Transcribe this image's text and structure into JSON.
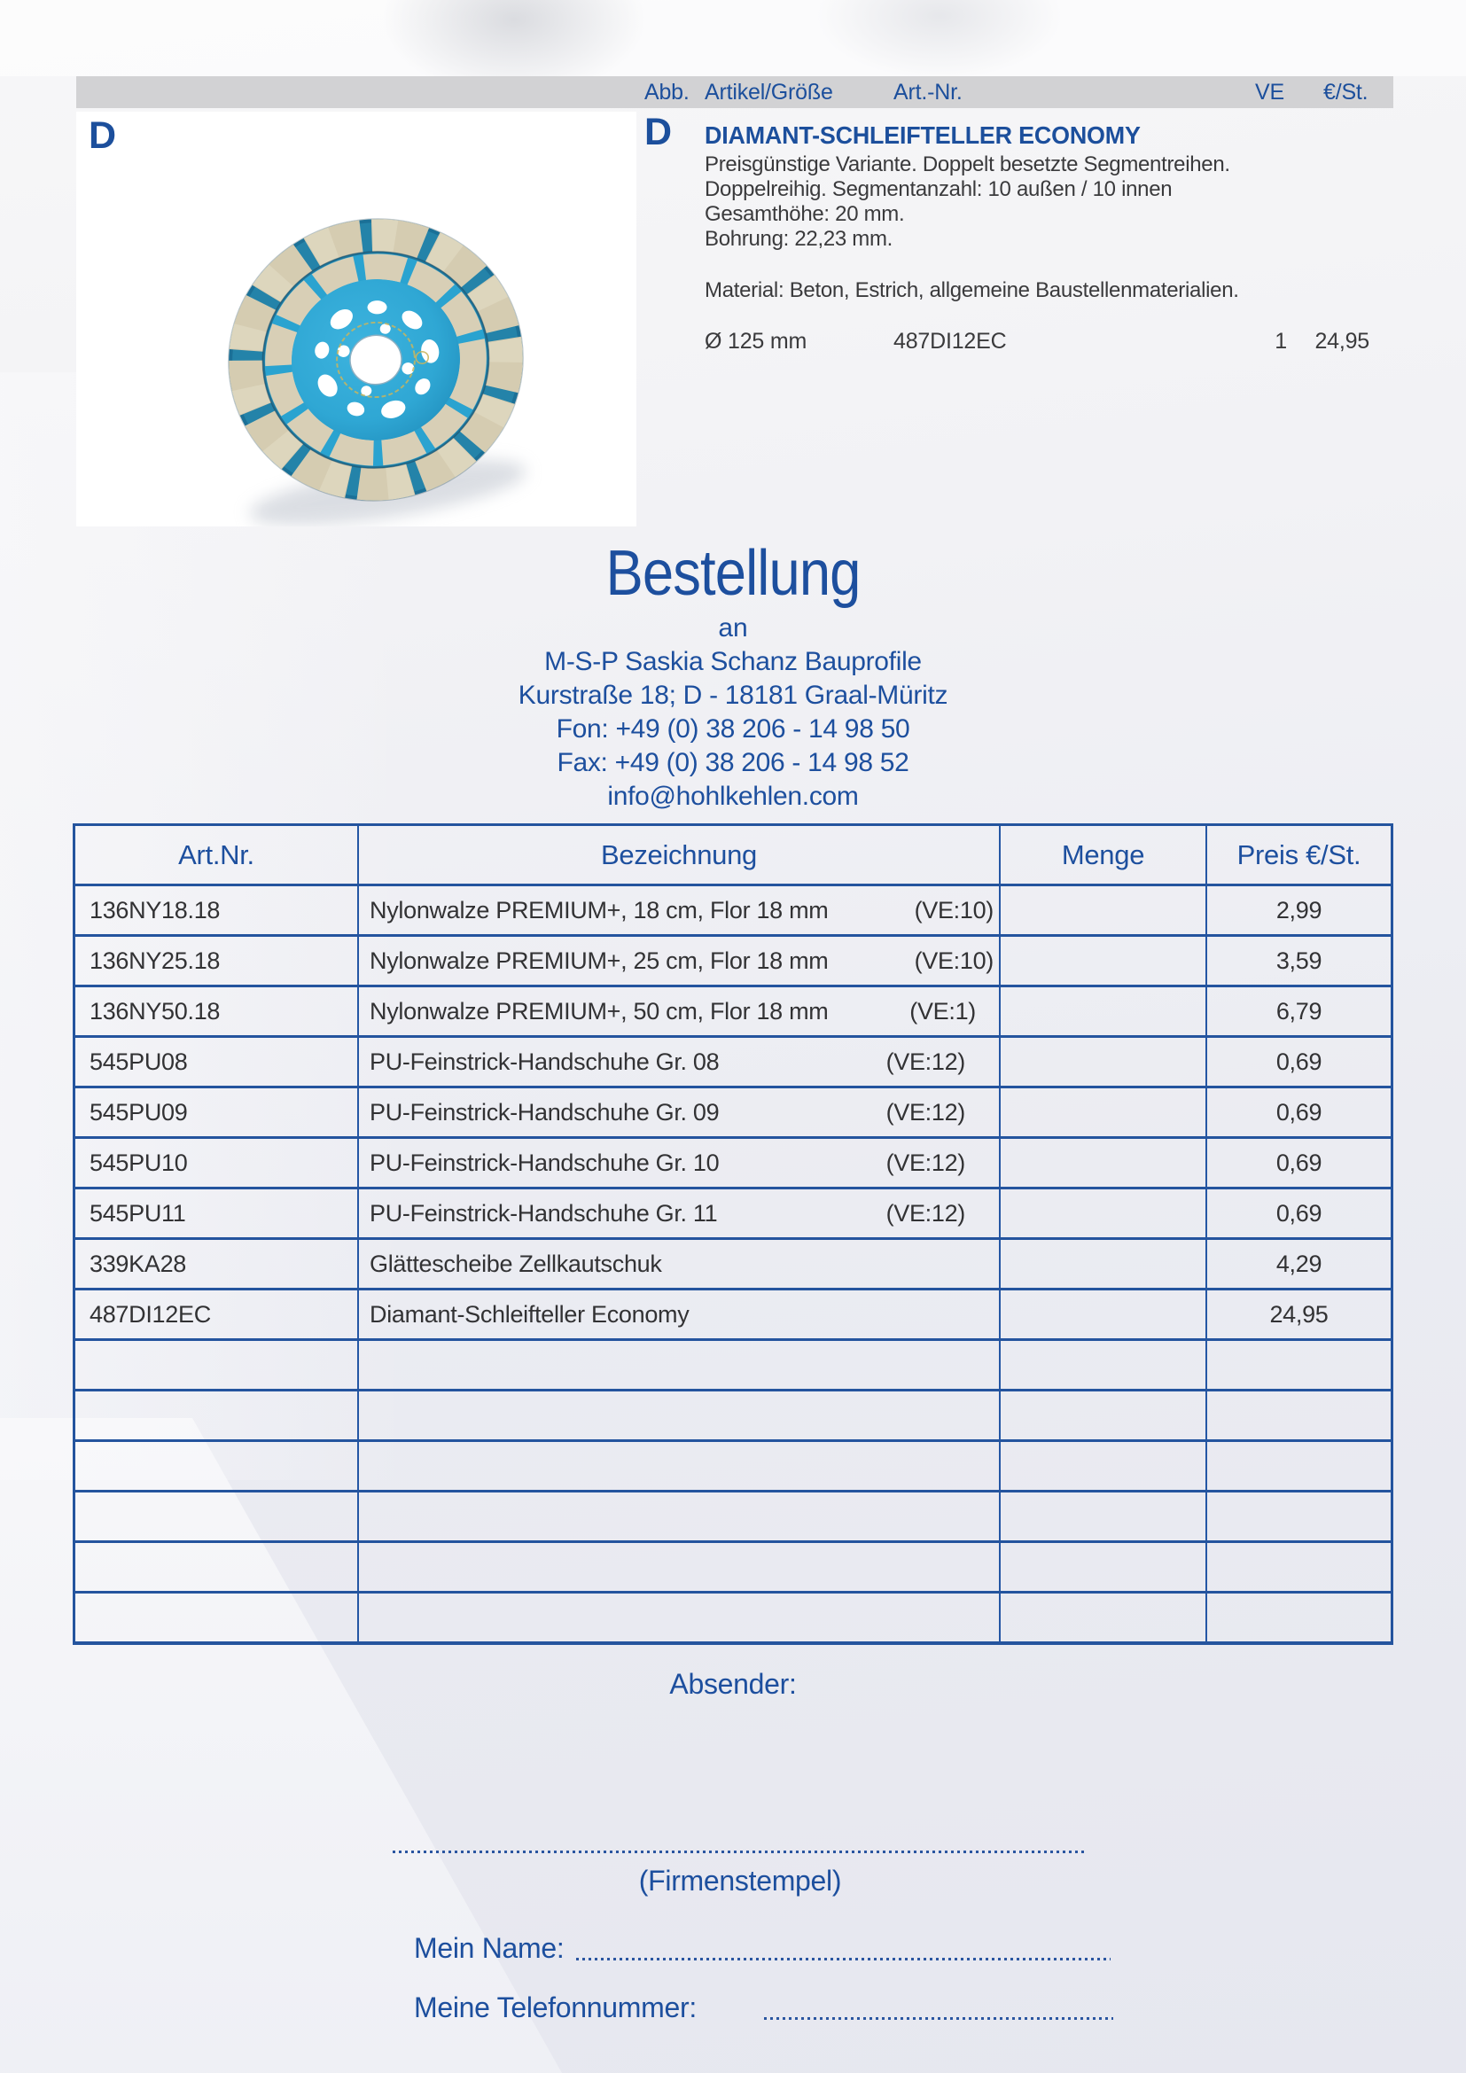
{
  "catalog_header": {
    "abb": "Abb.",
    "artikel": "Artikel/Größe",
    "artnr": "Art.-Nr.",
    "ve": "VE",
    "price": "€/St."
  },
  "product": {
    "section_letter": "D",
    "image_letter": "D",
    "title": "DIAMANT-SCHLEIFTELLER ECONOMY",
    "description_lines": [
      "Preisgünstige Variante. Doppelt besetzte Segmentreihen.",
      "Doppelreihig. Segmentanzahl: 10 außen / 10 innen",
      "Gesamthöhe: 20 mm.",
      "Bohrung: 22,23 mm."
    ],
    "material_line": "Material: Beton, Estrich, allgemeine Baustellenmaterialien.",
    "size": "Ø 125 mm",
    "art_nr": "487DI12EC",
    "ve": "1",
    "price": "24,95",
    "image_alt": "diamond-cup-grinding-wheel"
  },
  "order": {
    "title": "Bestellung",
    "an": "an",
    "recipient": "M-S-P Saskia Schanz Bauprofile",
    "street": "Kurstraße 18; D - 18181 Graal-Müritz",
    "fon": "Fon: +49 (0) 38 206 - 14 98 50",
    "fax": "Fax: +49 (0) 38 206 - 14 98 52",
    "email": "info@hohlkehlen.com"
  },
  "table": {
    "headers": [
      "Art.Nr.",
      "Bezeichnung",
      "Menge",
      "Preis €/St."
    ],
    "rows": [
      {
        "art": "136NY18.18",
        "name": "Nylonwalze PREMIUM+, 18 cm, Flor 18 mm",
        "ve": "(VE:10)",
        "menge": "",
        "price": "2,99"
      },
      {
        "art": "136NY25.18",
        "name": "Nylonwalze PREMIUM+, 25 cm, Flor 18 mm",
        "ve": "(VE:10)",
        "menge": "",
        "price": "3,59"
      },
      {
        "art": "136NY50.18",
        "name": "Nylonwalze PREMIUM+, 50 cm, Flor 18 mm",
        "ve": "(VE:1)",
        "menge": "",
        "price": "6,79"
      },
      {
        "art": "545PU08",
        "name": "PU-Feinstrick-Handschuhe Gr. 08",
        "ve": "(VE:12)",
        "menge": "",
        "price": "0,69"
      },
      {
        "art": "545PU09",
        "name": "PU-Feinstrick-Handschuhe Gr. 09",
        "ve": "(VE:12)",
        "menge": "",
        "price": "0,69"
      },
      {
        "art": "545PU10",
        "name": "PU-Feinstrick-Handschuhe Gr. 10",
        "ve": "(VE:12)",
        "menge": "",
        "price": "0,69"
      },
      {
        "art": "545PU11",
        "name": "PU-Feinstrick-Handschuhe Gr. 11",
        "ve": "(VE:12)",
        "menge": "",
        "price": "0,69"
      },
      {
        "art": "339KA28",
        "name": "Glättescheibe Zellkautschuk",
        "ve": "",
        "menge": "",
        "price": "4,29"
      },
      {
        "art": "487DI12EC",
        "name": "Diamant-Schleifteller Economy",
        "ve": "",
        "menge": "",
        "price": "24,95"
      },
      {
        "art": "",
        "name": "",
        "ve": "",
        "menge": "",
        "price": ""
      },
      {
        "art": "",
        "name": "",
        "ve": "",
        "menge": "",
        "price": ""
      },
      {
        "art": "",
        "name": "",
        "ve": "",
        "menge": "",
        "price": ""
      },
      {
        "art": "",
        "name": "",
        "ve": "",
        "menge": "",
        "price": ""
      },
      {
        "art": "",
        "name": "",
        "ve": "",
        "menge": "",
        "price": ""
      },
      {
        "art": "",
        "name": "",
        "ve": "",
        "menge": "",
        "price": ""
      }
    ]
  },
  "footer": {
    "absender": "Absender:",
    "stamp": "(Firmenstempel)",
    "name_label": "Mein Name:",
    "phone_label": "Meine Telefonnummer:"
  },
  "colors": {
    "accent_blue": "#1d4f9e",
    "table_border": "#24549e",
    "bar_gray": "#d2d2d4",
    "text_dark": "#3a3a3c",
    "wheel_blue": "#2fa7d4",
    "segment_beige": "#d5ccb1"
  }
}
